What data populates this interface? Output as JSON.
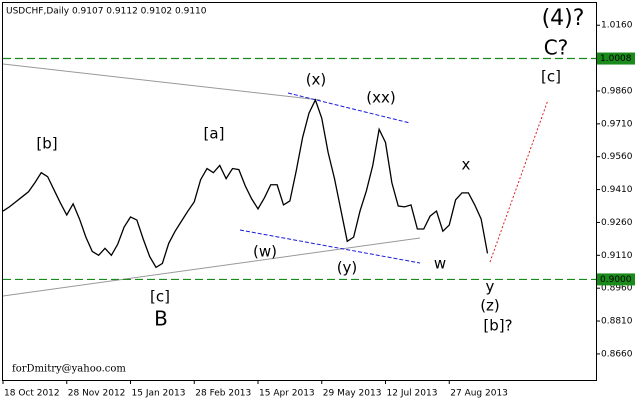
{
  "chart_data": {
    "type": "line",
    "title": "USDCHF,Daily  0.9107 0.9112 0.9102 0.9110",
    "watermark": "forDmitry@yahoo.com",
    "categories": [
      "18 Oct 2012",
      null,
      null,
      null,
      null,
      null,
      null,
      null,
      null,
      null,
      "28 Nov 2012",
      null,
      null,
      null,
      null,
      null,
      null,
      null,
      null,
      null,
      "15 Jan 2013",
      null,
      null,
      null,
      null,
      null,
      null,
      null,
      null,
      null,
      "28 Feb 2013",
      null,
      null,
      null,
      null,
      null,
      null,
      null,
      null,
      null,
      "15 Apr 2013",
      null,
      null,
      null,
      null,
      null,
      null,
      null,
      null,
      null,
      "29 May 2013",
      null,
      null,
      null,
      null,
      null,
      null,
      null,
      null,
      null,
      "12 Jul 2013",
      null,
      null,
      null,
      null,
      null,
      null,
      null,
      null,
      null,
      "27 Aug 2013",
      null,
      null,
      null,
      null,
      null,
      null
    ],
    "values": [
      0.9312,
      0.9331,
      0.9354,
      0.9377,
      0.94,
      0.9441,
      0.9487,
      0.9469,
      0.9409,
      0.9349,
      0.9294,
      0.9345,
      0.9276,
      0.9193,
      0.9128,
      0.911,
      0.9142,
      0.911,
      0.9161,
      0.9239,
      0.9285,
      0.9271,
      0.9184,
      0.9105,
      0.9055,
      0.9073,
      0.9165,
      0.922,
      0.9266,
      0.9312,
      0.9354,
      0.9455,
      0.9506,
      0.9487,
      0.952,
      0.946,
      0.9506,
      0.9501,
      0.9427,
      0.9368,
      0.9322,
      0.9372,
      0.9432,
      0.9432,
      0.934,
      0.9358,
      0.9496,
      0.9648,
      0.9759,
      0.9819,
      0.9736,
      0.9579,
      0.946,
      0.9317,
      0.9174,
      0.9193,
      0.9312,
      0.9404,
      0.952,
      0.9685,
      0.9625,
      0.9441,
      0.9335,
      0.9331,
      0.934,
      0.923,
      0.923,
      0.9289,
      0.9312,
      0.922,
      0.9248,
      0.9363,
      0.9395,
      0.9395,
      0.934,
      0.9276,
      0.9119
    ],
    "color": "#000000",
    "ylim": [
      0.8541,
      1.0266
    ],
    "yticks": [
      {
        "value": 1.016,
        "label": "1.0160"
      },
      {
        "value": 0.986,
        "label": "0.9860"
      },
      {
        "value": 0.971,
        "label": "0.9710"
      },
      {
        "value": 0.956,
        "label": "0.9560"
      },
      {
        "value": 0.941,
        "label": "0.9410"
      },
      {
        "value": 0.926,
        "label": "0.9260"
      },
      {
        "value": 0.911,
        "label": "0.9110"
      },
      {
        "value": 0.896,
        "label": "0.8960"
      },
      {
        "value": 0.881,
        "label": "0.8810"
      },
      {
        "value": 0.866,
        "label": "0.8660"
      }
    ],
    "levels": [
      {
        "value": 1.0008,
        "label": "1.0008"
      },
      {
        "value": 0.9,
        "label": "0.9000"
      }
    ],
    "level_color": "#1a8a1a",
    "annotations": [
      {
        "text": "(4)?",
        "color": "#1a1adb"
      },
      {
        "text": "C?",
        "color": "#9b2b2b"
      },
      {
        "text": "[c]",
        "color": "#1a7a1a"
      },
      {
        "text": "[b]",
        "color": "#1a7a1a"
      },
      {
        "text": "[a]",
        "color": "#1a7a1a"
      },
      {
        "text": "(x)",
        "color": "#1a1adb"
      },
      {
        "text": "(xx)",
        "color": "#1a1adb"
      },
      {
        "text": "(w)",
        "color": "#1a1adb"
      },
      {
        "text": "(y)",
        "color": "#1a1adb"
      },
      {
        "text": "w",
        "color": "#9b2b2b"
      },
      {
        "text": "x",
        "color": "#9b2b2b"
      },
      {
        "text": "y",
        "color": "#9b2b2b"
      },
      {
        "text": "(z)",
        "color": "#1a1adb"
      },
      {
        "text": "[b]?",
        "color": "#1a7a1a"
      },
      {
        "text": "[c]",
        "color": "#1a7a1a"
      },
      {
        "text": "B",
        "color": "#9b2b2b"
      }
    ]
  }
}
